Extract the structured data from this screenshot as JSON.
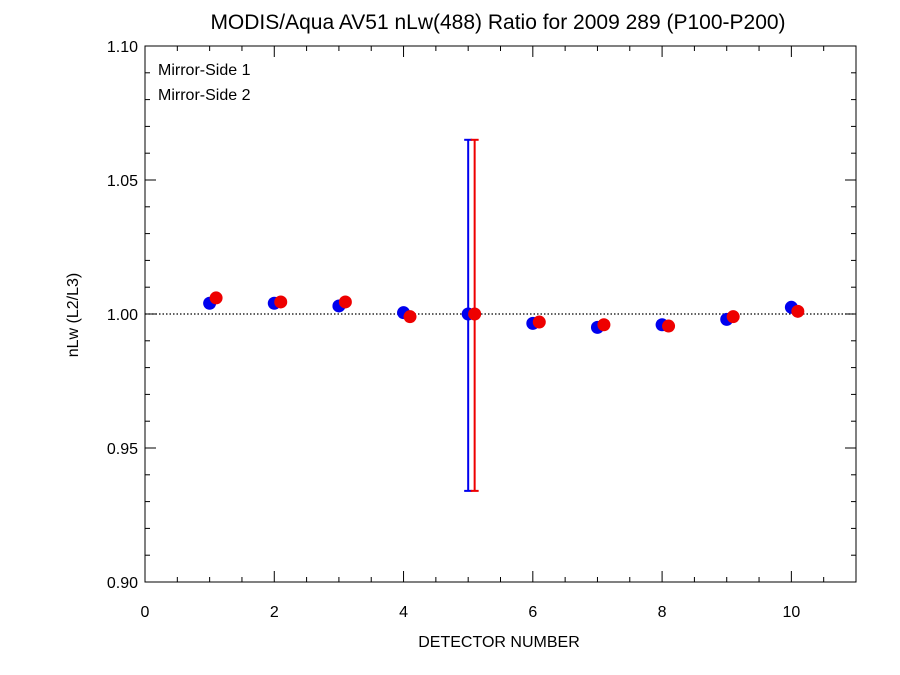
{
  "chart_data": {
    "type": "scatter",
    "title": "MODIS/Aqua AV51 nLw(488) Ratio for 2009 289 (P100-P200)",
    "xlabel": "DETECTOR NUMBER",
    "ylabel": "nLw (L2/L3)",
    "xlim": [
      0,
      11
    ],
    "ylim": [
      0.9,
      1.1
    ],
    "x_ticks": [
      0,
      2,
      4,
      6,
      8,
      10
    ],
    "x_tick_labels": [
      "0",
      "2",
      "4",
      "6",
      "8",
      "10"
    ],
    "y_ticks": [
      0.9,
      0.95,
      1.0,
      1.05,
      1.1
    ],
    "y_tick_labels": [
      "0.90",
      "0.95",
      "1.00",
      "1.05",
      "1.10"
    ],
    "reference_line": 1.0,
    "legend_position": "top-left",
    "series": [
      {
        "name": "Mirror-Side 1",
        "color": "#0000ee",
        "x": [
          1,
          2,
          3,
          4,
          5,
          6,
          7,
          8,
          9,
          10
        ],
        "y": [
          1.004,
          1.004,
          1.003,
          1.0005,
          1.0,
          0.9965,
          0.995,
          0.996,
          0.998,
          1.0025
        ],
        "error": [
          null,
          null,
          null,
          null,
          {
            "low": 0.934,
            "high": 1.065
          },
          null,
          null,
          null,
          null,
          null
        ]
      },
      {
        "name": "Mirror-Side 2",
        "color": "#ee0000",
        "x": [
          1.1,
          2.1,
          3.1,
          4.1,
          5.1,
          6.1,
          7.1,
          8.1,
          9.1,
          10.1
        ],
        "y": [
          1.006,
          1.0045,
          1.0045,
          0.999,
          1.0,
          0.997,
          0.996,
          0.9955,
          0.999,
          1.001
        ],
        "error": [
          null,
          null,
          null,
          null,
          {
            "low": 0.934,
            "high": 1.065
          },
          null,
          null,
          null,
          null,
          null
        ]
      }
    ]
  }
}
